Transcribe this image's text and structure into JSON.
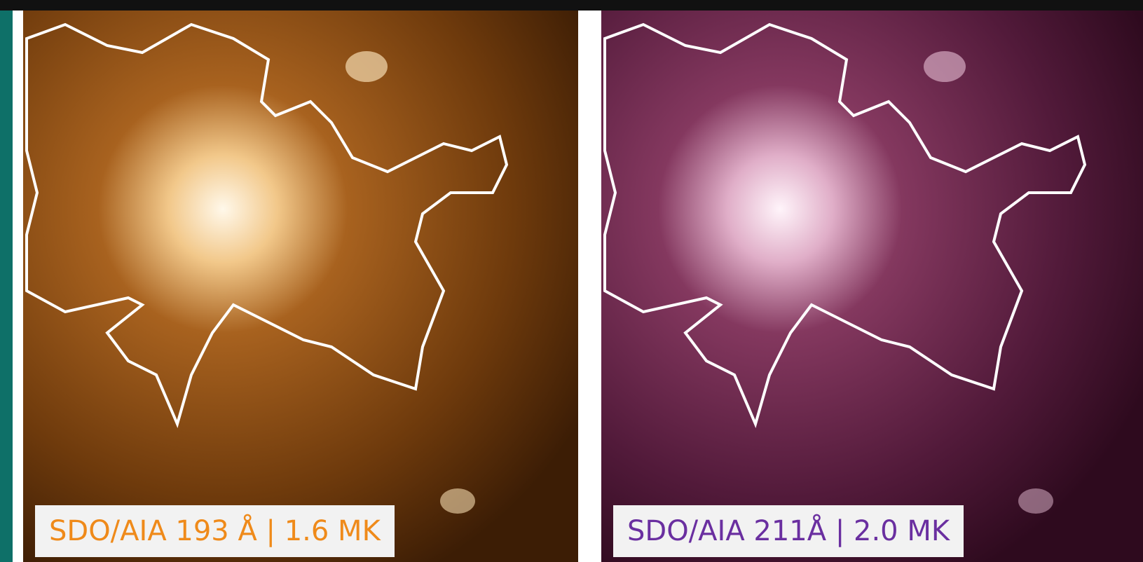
{
  "panels": [
    {
      "label": "SDO/AIA 193 Å | 1.6 MK"
    },
    {
      "label": "SDO/AIA 211Å | 2.0 MK"
    }
  ]
}
